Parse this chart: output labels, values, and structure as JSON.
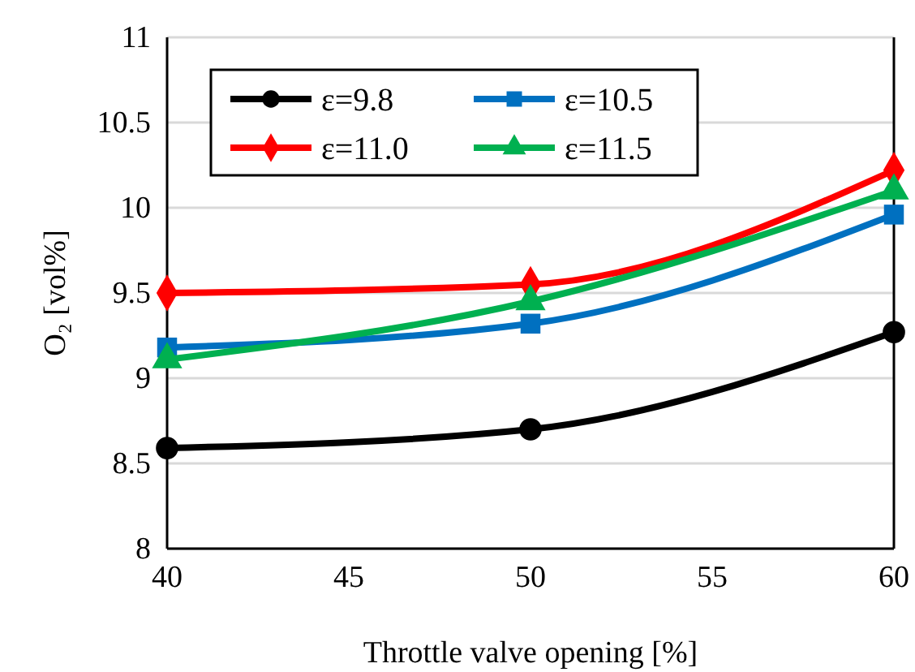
{
  "chart_data": {
    "type": "line",
    "xlabel": "Throttle valve  opening [%]",
    "ylabel": "O₂ [vol%]",
    "x": [
      40,
      50,
      60
    ],
    "xlim": [
      40,
      60
    ],
    "xticks": [
      40,
      45,
      50,
      55,
      60
    ],
    "ylim": [
      8,
      11
    ],
    "yticks": [
      8,
      8.5,
      9,
      9.5,
      10,
      10.5,
      11
    ],
    "grid": "y",
    "legend": "top left",
    "line_style": "solid",
    "series": [
      {
        "name": "ε=9.8",
        "color": "#000000",
        "marker": "circle",
        "values": [
          8.59,
          8.7,
          9.27
        ]
      },
      {
        "name": "ε=10.5",
        "color": "#0070c0",
        "marker": "square",
        "values": [
          9.18,
          9.32,
          9.96
        ]
      },
      {
        "name": "ε=11.0",
        "color": "#ff0000",
        "marker": "diamond",
        "values": [
          9.5,
          9.55,
          10.22
        ]
      },
      {
        "name": "ε=11.5",
        "color": "#00b050",
        "marker": "triangle",
        "values": [
          9.11,
          9.45,
          10.1
        ]
      }
    ]
  }
}
